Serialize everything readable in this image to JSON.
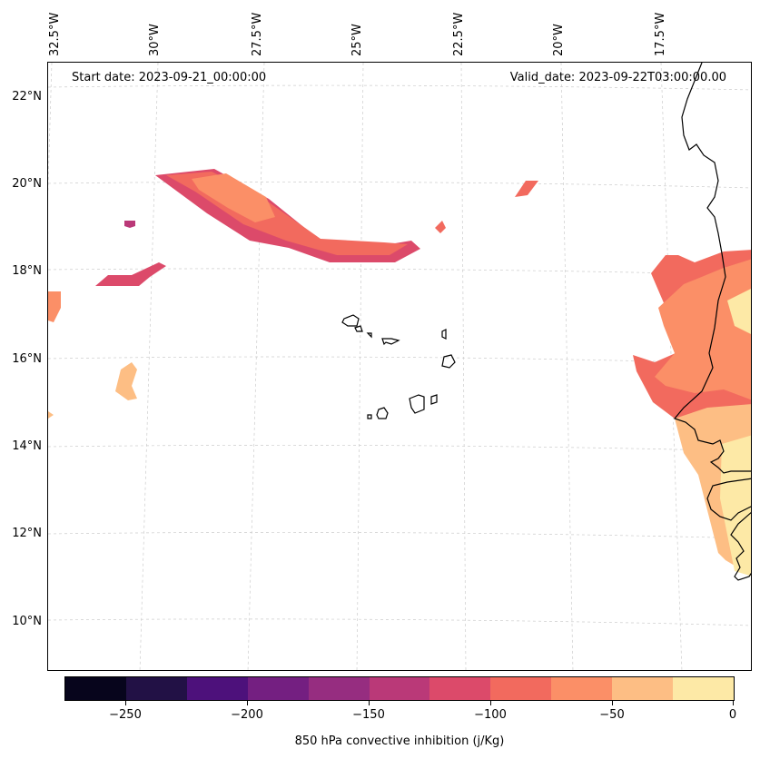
{
  "map": {
    "start_date": "Start date: 2023-09-21_00:00:00",
    "valid_date": "Valid_date: 2023-09-22T03:00:00.00",
    "lat_labels": [
      "22°N",
      "20°N",
      "18°N",
      "16°N",
      "14°N",
      "12°N",
      "10°N"
    ],
    "lon_labels": [
      "32.5°W",
      "30°W",
      "27.5°W",
      "25°W",
      "22.5°W",
      "20°W",
      "17.5°W"
    ],
    "gridlines": "dashed",
    "variable": "850 hPa convective inhibition",
    "units": "j/Kg"
  },
  "colorbar": {
    "title": "850 hPa convective inhibition (j/Kg)",
    "tick_labels": [
      "−250",
      "−200",
      "−150",
      "−100",
      "−50",
      "0"
    ],
    "levels": [
      -275,
      -250,
      -225,
      -200,
      -175,
      -150,
      -125,
      -100,
      -75,
      -50,
      -25,
      0
    ],
    "colors": [
      "#07051c",
      "#221145",
      "#4d117b",
      "#741f81",
      "#962d80",
      "#ba3978",
      "#dc4a6a",
      "#f26a5e",
      "#fb8f67",
      "#fdbe84",
      "#fde9a6"
    ]
  },
  "colors": {
    "coastline": "#000000",
    "gridline": "#cccccc"
  }
}
